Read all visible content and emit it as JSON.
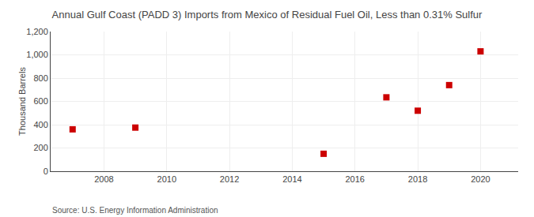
{
  "chart_data": {
    "type": "scatter",
    "title": "Annual Gulf Coast (PADD 3) Imports from Mexico of Residual Fuel Oil, Less than 0.31% Sulfur",
    "ylabel": "Thousand Barrels",
    "annotations": [
      {
        "text": "Source: U.S. Energy Information Administration"
      }
    ],
    "x": [
      2007,
      2009,
      2015,
      2017,
      2018,
      2019,
      2020
    ],
    "values": [
      360,
      375,
      150,
      635,
      520,
      740,
      1030
    ],
    "color": "#cc0000",
    "marker": "square",
    "xlim": [
      2006.3,
      2021.2
    ],
    "xticks": [
      2008,
      2010,
      2012,
      2014,
      2016,
      2018,
      2020
    ],
    "ylim": [
      0,
      1200
    ],
    "yticks": [
      0,
      200,
      400,
      600,
      800,
      {
        "value": 1000,
        "label": "1,000"
      },
      {
        "value": 1200,
        "label": "1,200"
      }
    ],
    "grid": true
  }
}
